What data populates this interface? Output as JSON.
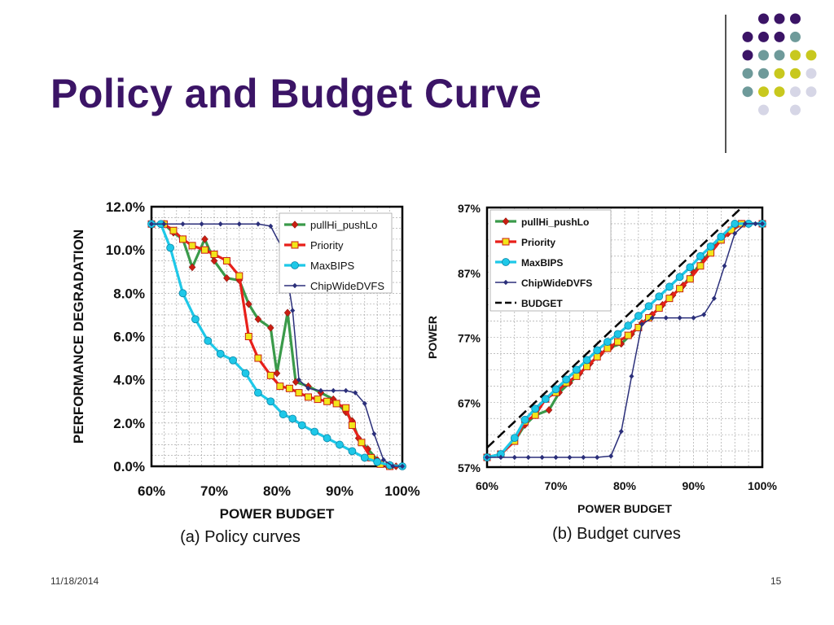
{
  "slide": {
    "title": "Policy and Budget Curve",
    "date": "11/18/2014",
    "page_number": "15",
    "title_color": "#3b1466",
    "dot_colors": [
      "#3b1466",
      "#6e9a9a",
      "#c8c81e",
      "#d6d6e6"
    ]
  },
  "chart_data": [
    {
      "type": "line",
      "title": "",
      "caption": "(a)  Policy curves",
      "xlabel": "POWER BUDGET",
      "ylabel": "PERFORMANCE DEGRADATION",
      "xlim": [
        60,
        100
      ],
      "ylim": [
        0,
        12
      ],
      "x_ticks": [
        "60%",
        "70%",
        "80%",
        "90%",
        "100%"
      ],
      "y_ticks": [
        "0.0%",
        "2.0%",
        "4.0%",
        "6.0%",
        "8.0%",
        "10.0%",
        "12.0%"
      ],
      "grid": true,
      "legend_position": "top-right",
      "series": [
        {
          "name": "pullHi_pushLo",
          "color": "#3a9a4a",
          "marker": "diamond-red",
          "points": [
            [
              60,
              11.2
            ],
            [
              62,
              11.2
            ],
            [
              63.5,
              10.8
            ],
            [
              65,
              10.5
            ],
            [
              66.5,
              9.2
            ],
            [
              68.5,
              10.5
            ],
            [
              70,
              9.5
            ],
            [
              72,
              8.7
            ],
            [
              74,
              8.6
            ],
            [
              75.5,
              7.5
            ],
            [
              77,
              6.8
            ],
            [
              79,
              6.4
            ],
            [
              80,
              4.3
            ],
            [
              81.7,
              7.1
            ],
            [
              83,
              3.9
            ],
            [
              85,
              3.7
            ],
            [
              87,
              3.4
            ],
            [
              89,
              3.1
            ],
            [
              91,
              2.5
            ],
            [
              92,
              2.1
            ],
            [
              93,
              1.3
            ],
            [
              94.5,
              0.8
            ],
            [
              96,
              0.3
            ],
            [
              97.5,
              0.05
            ],
            [
              99,
              0.0
            ],
            [
              100,
              0.0
            ]
          ]
        },
        {
          "name": "Priority",
          "color": "#e8201a",
          "marker": "square-yellow",
          "points": [
            [
              60,
              11.2
            ],
            [
              62,
              11.2
            ],
            [
              63.5,
              10.9
            ],
            [
              65,
              10.5
            ],
            [
              66.5,
              10.2
            ],
            [
              68.5,
              10.0
            ],
            [
              70,
              9.8
            ],
            [
              72,
              9.5
            ],
            [
              74,
              8.8
            ],
            [
              75.5,
              6.0
            ],
            [
              77,
              5.0
            ],
            [
              79,
              4.2
            ],
            [
              80.5,
              3.7
            ],
            [
              82,
              3.6
            ],
            [
              83.5,
              3.4
            ],
            [
              85,
              3.2
            ],
            [
              86.5,
              3.1
            ],
            [
              88,
              3.0
            ],
            [
              89.5,
              2.9
            ],
            [
              91,
              2.7
            ],
            [
              92,
              1.9
            ],
            [
              93.5,
              1.1
            ],
            [
              95,
              0.4
            ],
            [
              96.5,
              0.1
            ],
            [
              98,
              0.0
            ]
          ]
        },
        {
          "name": "MaxBIPS",
          "color": "#1ec8e8",
          "marker": "circle-cyan",
          "points": [
            [
              60,
              11.2
            ],
            [
              61.5,
              11.2
            ],
            [
              63,
              10.1
            ],
            [
              65,
              8.0
            ],
            [
              67,
              6.8
            ],
            [
              69,
              5.8
            ],
            [
              71,
              5.2
            ],
            [
              73,
              4.9
            ],
            [
              75,
              4.3
            ],
            [
              77,
              3.4
            ],
            [
              79,
              3.0
            ],
            [
              81,
              2.4
            ],
            [
              82.5,
              2.2
            ],
            [
              84,
              1.9
            ],
            [
              86,
              1.6
            ],
            [
              88,
              1.3
            ],
            [
              90,
              1.0
            ],
            [
              92,
              0.7
            ],
            [
              94,
              0.4
            ],
            [
              96,
              0.2
            ],
            [
              98,
              0.05
            ],
            [
              100,
              0.0
            ]
          ]
        },
        {
          "name": "ChipWideDVFS",
          "color": "#2b2f7a",
          "marker": "diamond-navy",
          "points": [
            [
              60,
              11.2
            ],
            [
              62,
              11.2
            ],
            [
              65,
              11.2
            ],
            [
              68,
              11.2
            ],
            [
              71,
              11.2
            ],
            [
              74,
              11.2
            ],
            [
              77,
              11.2
            ],
            [
              79,
              11.1
            ],
            [
              81,
              10.0
            ],
            [
              82.5,
              7.2
            ],
            [
              83.5,
              4.0
            ],
            [
              85,
              3.6
            ],
            [
              87,
              3.5
            ],
            [
              89,
              3.5
            ],
            [
              91,
              3.5
            ],
            [
              92.5,
              3.4
            ],
            [
              94,
              2.9
            ],
            [
              95.5,
              1.5
            ],
            [
              97,
              0.3
            ],
            [
              98.5,
              0.0
            ],
            [
              100,
              0.0
            ]
          ]
        }
      ]
    },
    {
      "type": "line",
      "title": "",
      "caption": "(b)  Budget curves",
      "xlabel": "POWER BUDGET",
      "ylabel": "POWER",
      "xlim": [
        60,
        100
      ],
      "ylim": [
        57,
        97
      ],
      "x_ticks": [
        "60%",
        "70%",
        "80%",
        "90%",
        "100%"
      ],
      "y_ticks": [
        "57%",
        "67%",
        "77%",
        "87%",
        "97%"
      ],
      "grid": true,
      "legend_position": "top-left",
      "series": [
        {
          "name": "pullHi_pushLo",
          "color": "#3a9a4a",
          "marker": "diamond-red",
          "points": [
            [
              60,
              58.5
            ],
            [
              62,
              59
            ],
            [
              64,
              61
            ],
            [
              65.5,
              63.5
            ],
            [
              67,
              65
            ],
            [
              69,
              65.8
            ],
            [
              70.5,
              68.5
            ],
            [
              72,
              70
            ],
            [
              73.5,
              71.5
            ],
            [
              75,
              73
            ],
            [
              76.5,
              74.5
            ],
            [
              78,
              75.5
            ],
            [
              79.5,
              76
            ],
            [
              81,
              77.5
            ],
            [
              82.5,
              79.2
            ],
            [
              84,
              80.5
            ],
            [
              85.5,
              82
            ],
            [
              87,
              83.5
            ],
            [
              88.5,
              85
            ],
            [
              90,
              87
            ],
            [
              91.5,
              89
            ],
            [
              93,
              91
            ],
            [
              95,
              93
            ],
            [
              97,
              94.5
            ],
            [
              100,
              94.5
            ]
          ]
        },
        {
          "name": "Priority",
          "color": "#e8201a",
          "marker": "square-yellow",
          "points": [
            [
              60,
              58.5
            ],
            [
              62,
              59
            ],
            [
              64,
              61
            ],
            [
              65.5,
              64
            ],
            [
              67,
              65
            ],
            [
              68.5,
              67.5
            ],
            [
              70,
              68.5
            ],
            [
              71.5,
              70
            ],
            [
              73,
              71
            ],
            [
              74.5,
              72.5
            ],
            [
              76,
              74
            ],
            [
              77.5,
              75.3
            ],
            [
              79,
              76.3
            ],
            [
              80.5,
              77.3
            ],
            [
              82,
              78.5
            ],
            [
              83.5,
              80
            ],
            [
              85,
              81.5
            ],
            [
              86.5,
              83
            ],
            [
              88,
              84.5
            ],
            [
              89.5,
              86
            ],
            [
              91,
              88
            ],
            [
              92.5,
              90
            ],
            [
              94,
              92
            ],
            [
              95.5,
              93.5
            ],
            [
              97,
              94.5
            ],
            [
              100,
              94.5
            ]
          ]
        },
        {
          "name": "MaxBIPS",
          "color": "#1ec8e8",
          "marker": "circle-cyan",
          "points": [
            [
              60,
              58.5
            ],
            [
              62,
              59
            ],
            [
              64,
              61.5
            ],
            [
              65.5,
              64.3
            ],
            [
              67,
              66
            ],
            [
              68.5,
              67.5
            ],
            [
              70,
              69
            ],
            [
              71.5,
              70.5
            ],
            [
              73,
              72
            ],
            [
              74.5,
              73.5
            ],
            [
              76,
              75
            ],
            [
              77.5,
              76.3
            ],
            [
              79,
              77.5
            ],
            [
              80.5,
              78.8
            ],
            [
              82,
              80.3
            ],
            [
              83.5,
              81.8
            ],
            [
              85,
              83.3
            ],
            [
              86.5,
              84.8
            ],
            [
              88,
              86.3
            ],
            [
              89.5,
              87.8
            ],
            [
              91,
              89.5
            ],
            [
              92.5,
              91
            ],
            [
              94,
              92.5
            ],
            [
              96,
              94.5
            ],
            [
              98,
              94.5
            ],
            [
              100,
              94.5
            ]
          ]
        },
        {
          "name": "ChipWideDVFS",
          "color": "#2b2f7a",
          "marker": "diamond-navy",
          "points": [
            [
              60,
              58.5
            ],
            [
              62,
              58.5
            ],
            [
              64,
              58.5
            ],
            [
              66,
              58.5
            ],
            [
              68,
              58.5
            ],
            [
              70,
              58.5
            ],
            [
              72,
              58.5
            ],
            [
              74,
              58.5
            ],
            [
              76,
              58.5
            ],
            [
              78,
              58.7
            ],
            [
              79.5,
              62.5
            ],
            [
              81,
              71
            ],
            [
              82.5,
              79
            ],
            [
              84,
              80
            ],
            [
              86,
              80
            ],
            [
              88,
              80
            ],
            [
              90,
              80
            ],
            [
              91.5,
              80.5
            ],
            [
              93,
              83
            ],
            [
              94.5,
              88
            ],
            [
              96,
              93
            ],
            [
              97.5,
              94.5
            ],
            [
              99,
              94.5
            ],
            [
              100,
              94.5
            ]
          ]
        },
        {
          "name": "BUDGET",
          "color": "#000000",
          "dashed": true,
          "points": [
            [
              60,
              60
            ],
            [
              97,
              97
            ]
          ]
        }
      ]
    }
  ]
}
